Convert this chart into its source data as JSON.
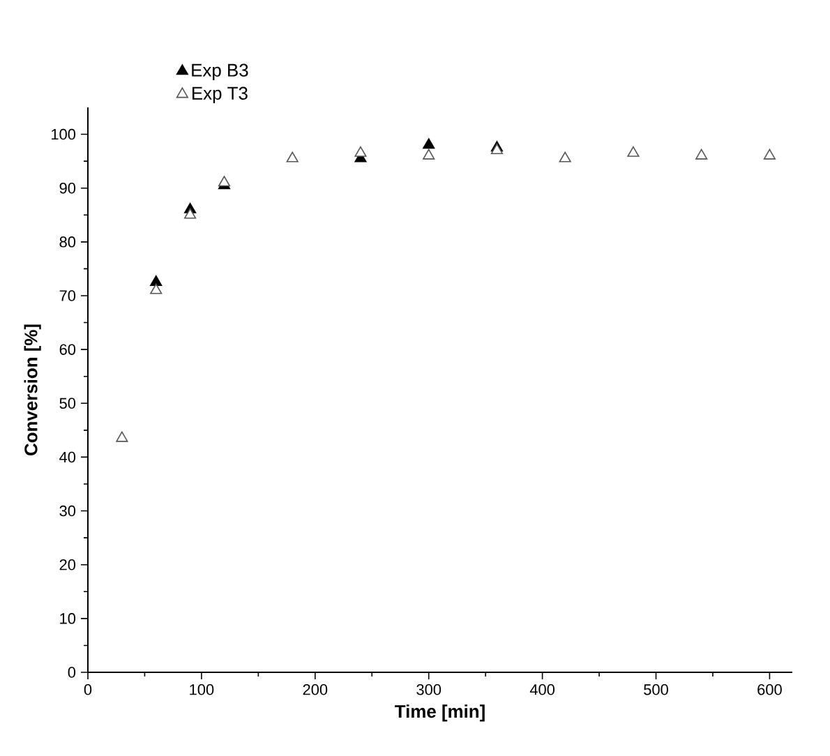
{
  "chart_data": {
    "type": "scatter",
    "xlabel": "Time [min]",
    "ylabel": "Conversion [%]",
    "xlim": [
      0,
      620
    ],
    "ylim": [
      0,
      105
    ],
    "xticks": [
      0,
      100,
      200,
      300,
      400,
      500,
      600
    ],
    "yticks": [
      0,
      10,
      20,
      30,
      40,
      50,
      60,
      70,
      80,
      90,
      100
    ],
    "marker": "triangle",
    "legend": "top left",
    "grid": false,
    "series": [
      {
        "name": "Exp B3",
        "color": "#000000",
        "x": [
          60,
          90,
          120,
          240,
          300,
          360
        ],
        "values": [
          72.5,
          86,
          90.5,
          95.5,
          98,
          97.5
        ]
      },
      {
        "name": "Exp T3",
        "color": "#555555",
        "x": [
          30,
          60,
          90,
          120,
          180,
          240,
          300,
          360,
          420,
          480,
          540,
          600
        ],
        "values": [
          43.5,
          71,
          85,
          91,
          95.5,
          96.5,
          96,
          97,
          95.5,
          96.5,
          96,
          96
        ]
      }
    ]
  }
}
